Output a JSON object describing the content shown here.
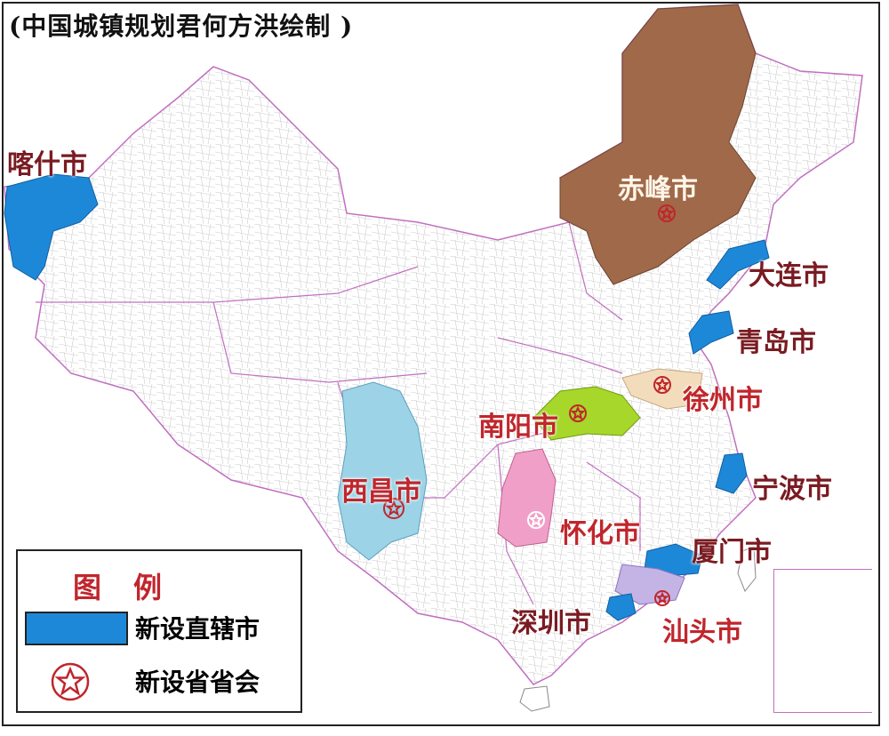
{
  "title": "(中国城镇规划君何方洪绘制 )",
  "colors": {
    "direct_city": "#1e88d8",
    "chifeng": "#a0694a",
    "xichang": "#9dd3e6",
    "nanyang": "#a6d72a",
    "huaihua": "#f0a0c8",
    "xuzhou": "#f2dcbc",
    "shantou": "#c4b4e6",
    "capital_star": "#c0262c",
    "province_border": "#c070c0"
  },
  "cities": {
    "kashgar": "喀什市",
    "chifeng": "赤峰市",
    "dalian": "大连市",
    "qingdao": "青岛市",
    "xuzhou": "徐州市",
    "nanyang": "南阳市",
    "ningbo": "宁波市",
    "xichang": "西昌市",
    "huaihua": "怀化市",
    "xiamen": "厦门市",
    "shenzhen": "深圳市",
    "shantou": "汕头市"
  },
  "legend": {
    "title": "图例",
    "direct_city": "新设直辖市",
    "provincial_capital": "新设省省会",
    "star_icon": "circled-star-icon"
  }
}
